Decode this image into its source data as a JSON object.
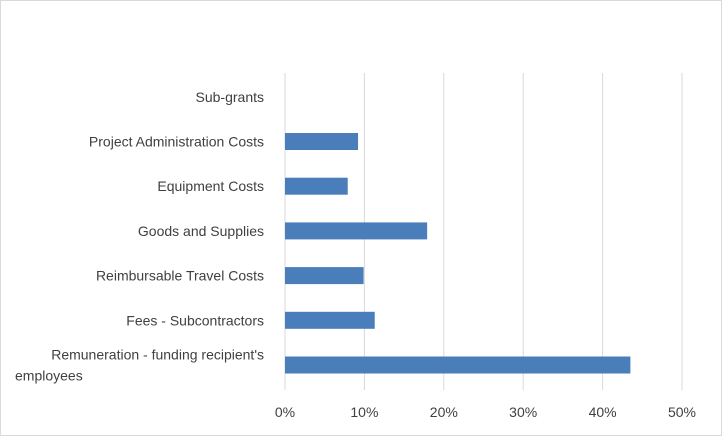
{
  "chart_data": {
    "type": "bar",
    "orientation": "horizontal",
    "categories": [
      "Remuneration - funding recipient's employees",
      "Fees - Subcontractors",
      "Reimbursable Travel Costs",
      "Goods and Supplies",
      "Equipment Costs",
      "Project Administration Costs",
      "Sub-grants"
    ],
    "category_lines": [
      [
        "Remuneration - funding recipient's",
        "employees"
      ],
      [
        "Fees - Subcontractors"
      ],
      [
        "Reimbursable Travel Costs"
      ],
      [
        "Goods and Supplies"
      ],
      [
        "Equipment Costs"
      ],
      [
        "Project Administration Costs"
      ],
      [
        "Sub-grants"
      ]
    ],
    "values": [
      43.5,
      11.3,
      9.9,
      17.9,
      7.9,
      9.2,
      0
    ],
    "xlim": [
      0,
      50
    ],
    "xticks": [
      "0%",
      "10%",
      "20%",
      "30%",
      "40%",
      "50%"
    ],
    "xtick_values": [
      0,
      10,
      20,
      30,
      40,
      50
    ],
    "grid": true,
    "legend": "none",
    "title": "",
    "xlabel": "",
    "ylabel": "",
    "bar_color": "#4a7ebb",
    "grid_color": "#d9d9d9",
    "text_color": "#404040"
  }
}
